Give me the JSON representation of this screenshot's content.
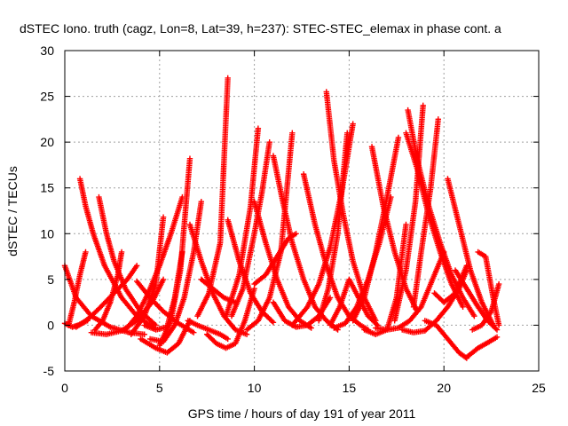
{
  "chart_data": {
    "type": "scatter",
    "title": "dSTEC Iono. truth (cagz, Lon=8, Lat=39, h=237): STEC-STEC_elemax in phase cont. a",
    "xlabel": "GPS time / hours of day 191 of year 2011",
    "ylabel": "dSTEC  / TECUs",
    "xlim": [
      0,
      25
    ],
    "ylim": [
      -5,
      30
    ],
    "x_ticks": [
      "0",
      "5",
      "10",
      "15",
      "20",
      "25"
    ],
    "y_ticks": [
      "-5",
      "0",
      "5",
      "10",
      "15",
      "20",
      "25",
      "30"
    ],
    "grid": true,
    "marker": "+",
    "colors": {
      "series": "#ff0000",
      "grid": "#a0a0a0",
      "axis": "#000000"
    },
    "series": [
      {
        "x": [
          0.0,
          0.6,
          1.4,
          2.4,
          3.4,
          4.2
        ],
        "y": [
          6.5,
          3.0,
          1.0,
          -0.2,
          -0.8,
          -1.0
        ]
      },
      {
        "x": [
          0.0,
          0.4,
          0.7,
          1.2
        ],
        "y": [
          0.2,
          -0.2,
          0.0,
          0.5
        ]
      },
      {
        "x": [
          0.6,
          0.9,
          1.3,
          1.8,
          2.6,
          3.3,
          3.8
        ],
        "y": [
          -0.2,
          0.2,
          0.8,
          1.8,
          3.5,
          5.0,
          6.5
        ]
      },
      {
        "x": [
          0.8,
          1.1,
          1.5,
          2.1,
          3.0,
          3.8,
          4.7
        ],
        "y": [
          16.0,
          13.0,
          10.0,
          6.5,
          3.0,
          1.0,
          -0.3
        ]
      },
      {
        "x": [
          0.2,
          0.5,
          0.8,
          1.1
        ],
        "y": [
          0.0,
          2.5,
          5.5,
          8.0
        ]
      },
      {
        "x": [
          1.8,
          2.2,
          2.6,
          3.2,
          4.0,
          4.8
        ],
        "y": [
          14.0,
          10.0,
          7.0,
          4.0,
          1.5,
          0.0
        ]
      },
      {
        "x": [
          1.6,
          2.0,
          2.4,
          2.8,
          3.0
        ],
        "y": [
          -0.5,
          0.5,
          2.5,
          5.5,
          8.0
        ]
      },
      {
        "x": [
          1.4,
          2.2,
          3.0,
          3.8,
          4.6,
          5.2
        ],
        "y": [
          -0.8,
          -1.0,
          -0.6,
          0.5,
          2.5,
          5.0
        ]
      },
      {
        "x": [
          3.2,
          3.8,
          4.4,
          5.0,
          5.6,
          6.2
        ],
        "y": [
          -0.5,
          1.0,
          3.5,
          6.5,
          10.0,
          14.0
        ]
      },
      {
        "x": [
          3.5,
          4.2,
          4.8,
          5.2
        ],
        "y": [
          -1.0,
          1.0,
          4.5,
          11.8
        ]
      },
      {
        "x": [
          3.8,
          4.5,
          5.2,
          6.0,
          6.8
        ],
        "y": [
          4.8,
          3.0,
          1.5,
          0.2,
          -0.8
        ]
      },
      {
        "x": [
          4.0,
          4.8,
          5.4,
          6.0,
          6.6
        ],
        "y": [
          -1.5,
          -2.5,
          -3.0,
          -2.0,
          0.5
        ]
      },
      {
        "x": [
          4.2,
          4.8,
          5.4,
          5.8,
          6.2
        ],
        "y": [
          0.0,
          -0.5,
          -0.2,
          3.0,
          8.0
        ]
      },
      {
        "x": [
          4.5,
          5.2,
          5.8,
          6.3,
          6.8,
          7.2
        ],
        "y": [
          -1.5,
          -1.8,
          0.0,
          3.0,
          8.0,
          13.5
        ]
      },
      {
        "x": [
          5.0,
          5.6,
          6.1,
          6.6
        ],
        "y": [
          -2.2,
          0.5,
          6.0,
          18.2
        ]
      },
      {
        "x": [
          6.6,
          7.2,
          7.8,
          8.4,
          9.0,
          9.6
        ],
        "y": [
          11.0,
          7.0,
          3.5,
          1.0,
          -0.5,
          -1.0
        ]
      },
      {
        "x": [
          6.5,
          7.0,
          7.6,
          8.2,
          8.6
        ],
        "y": [
          0.5,
          0.0,
          -0.5,
          -1.0,
          -1.5
        ]
      },
      {
        "x": [
          7.0,
          7.6,
          8.2,
          8.6
        ],
        "y": [
          1.0,
          3.5,
          9.0,
          27.0
        ]
      },
      {
        "x": [
          7.2,
          7.8,
          8.4,
          9.0
        ],
        "y": [
          5.0,
          4.0,
          3.0,
          2.5
        ]
      },
      {
        "x": [
          7.5,
          8.0,
          8.5,
          9.0,
          9.5,
          10.0
        ],
        "y": [
          -1.0,
          -2.0,
          -2.5,
          -2.0,
          0.5,
          4.0
        ]
      },
      {
        "x": [
          8.6,
          9.2,
          9.8,
          10.4,
          11.0
        ],
        "y": [
          11.5,
          7.0,
          3.5,
          1.5,
          0.3
        ]
      },
      {
        "x": [
          8.8,
          9.4,
          10.0,
          10.4,
          10.8
        ],
        "y": [
          1.0,
          4.0,
          10.0,
          14.5,
          20.0
        ]
      },
      {
        "x": [
          8.5,
          9.2,
          9.8,
          10.2
        ],
        "y": [
          1.0,
          5.5,
          13.0,
          21.5
        ]
      },
      {
        "x": [
          10.0,
          10.6,
          11.2,
          11.8,
          12.4,
          13.0
        ],
        "y": [
          13.5,
          9.0,
          5.0,
          2.0,
          0.5,
          -0.3
        ]
      },
      {
        "x": [
          9.6,
          10.2,
          10.8,
          11.4,
          12.0
        ],
        "y": [
          -0.5,
          0.5,
          3.0,
          8.0,
          21.0
        ]
      },
      {
        "x": [
          10.0,
          10.6,
          11.2,
          11.8,
          12.2
        ],
        "y": [
          4.5,
          5.5,
          7.5,
          9.5,
          10.0
        ]
      },
      {
        "x": [
          11.0,
          11.5,
          12.0,
          12.6,
          13.2,
          13.8,
          14.4
        ],
        "y": [
          18.5,
          13.5,
          9.0,
          5.0,
          2.0,
          0.5,
          -0.5
        ]
      },
      {
        "x": [
          11.0,
          11.6,
          12.2,
          12.8,
          13.4,
          14.0
        ],
        "y": [
          2.5,
          0.5,
          -0.2,
          0.0,
          1.0,
          3.0
        ]
      },
      {
        "x": [
          12.6,
          13.2,
          13.8,
          14.4,
          15.0,
          15.6,
          16.0
        ],
        "y": [
          16.5,
          11.0,
          6.5,
          3.0,
          1.0,
          0.0,
          -0.5
        ]
      },
      {
        "x": [
          12.0,
          12.8,
          13.4,
          14.0,
          14.6,
          15.2
        ],
        "y": [
          0.0,
          2.0,
          4.5,
          8.5,
          14.5,
          22.0
        ]
      },
      {
        "x": [
          13.8,
          14.2,
          14.7,
          15.2,
          15.8,
          16.4
        ],
        "y": [
          25.5,
          18.0,
          12.0,
          7.0,
          3.0,
          0.5
        ]
      },
      {
        "x": [
          13.4,
          13.9,
          14.4,
          14.9
        ],
        "y": [
          0.5,
          4.0,
          10.0,
          21.0
        ]
      },
      {
        "x": [
          14.0,
          14.5,
          15.0,
          15.5,
          16.0,
          16.5
        ],
        "y": [
          0.0,
          2.0,
          5.0,
          3.0,
          1.0,
          0.0
        ]
      },
      {
        "x": [
          14.2,
          14.8,
          15.4,
          16.0,
          16.6,
          17.2
        ],
        "y": [
          -0.3,
          0.2,
          2.0,
          5.0,
          9.0,
          14.0
        ]
      },
      {
        "x": [
          16.2,
          16.8,
          17.4,
          18.0,
          18.6
        ],
        "y": [
          19.5,
          13.0,
          8.0,
          4.0,
          1.5
        ]
      },
      {
        "x": [
          15.8,
          16.4,
          17.0,
          17.5,
          18.0
        ],
        "y": [
          -0.5,
          -1.0,
          -0.5,
          3.0,
          11.0
        ]
      },
      {
        "x": [
          15.2,
          15.8,
          16.4,
          17.0,
          17.6
        ],
        "y": [
          0.5,
          3.0,
          8.0,
          14.0,
          20.5
        ]
      },
      {
        "x": [
          16.4,
          17.0,
          17.6,
          18.2,
          18.8,
          19.4,
          20.0
        ],
        "y": [
          -0.3,
          -0.5,
          -0.3,
          0.5,
          2.0,
          5.0,
          8.0
        ]
      },
      {
        "x": [
          18.1,
          18.6,
          19.2,
          19.8,
          20.4,
          21.0,
          21.6
        ],
        "y": [
          23.5,
          18.0,
          13.0,
          9.0,
          5.5,
          3.0,
          1.0
        ]
      },
      {
        "x": [
          17.4,
          18.0,
          18.5,
          18.9
        ],
        "y": [
          0.5,
          6.0,
          13.5,
          24.0
        ]
      },
      {
        "x": [
          18.0,
          18.6,
          19.2,
          19.8,
          20.4,
          21.0
        ],
        "y": [
          21.0,
          17.0,
          12.0,
          8.0,
          4.5,
          2.0
        ]
      },
      {
        "x": [
          18.4,
          18.8,
          19.3,
          19.7
        ],
        "y": [
          2.0,
          8.0,
          15.0,
          22.5
        ]
      },
      {
        "x": [
          17.8,
          18.4,
          19.0,
          19.6,
          20.2,
          20.8,
          21.2
        ],
        "y": [
          -0.5,
          -0.8,
          -0.6,
          0.5,
          2.0,
          4.0,
          6.0
        ]
      },
      {
        "x": [
          19.0,
          19.6,
          20.2,
          20.8,
          21.2
        ],
        "y": [
          0.5,
          0.0,
          -1.5,
          -3.0,
          -3.6
        ]
      },
      {
        "x": [
          19.5,
          20.0,
          20.6,
          21.2
        ],
        "y": [
          3.5,
          2.5,
          3.5,
          6.5
        ]
      },
      {
        "x": [
          20.2,
          20.8,
          21.4,
          22.0,
          22.6
        ],
        "y": [
          16.0,
          11.0,
          6.0,
          2.5,
          0.0
        ]
      },
      {
        "x": [
          20.6,
          21.2,
          21.8,
          22.3,
          22.8
        ],
        "y": [
          6.0,
          4.0,
          2.0,
          0.5,
          -0.5
        ]
      },
      {
        "x": [
          21.2,
          21.8,
          22.4,
          22.8
        ],
        "y": [
          -3.5,
          -2.5,
          -1.8,
          -1.3
        ]
      },
      {
        "x": [
          21.8,
          22.2,
          22.6,
          22.9
        ],
        "y": [
          8.0,
          7.5,
          3.0,
          0.0
        ]
      },
      {
        "x": [
          21.5,
          22.0,
          22.5,
          22.9
        ],
        "y": [
          -0.5,
          0.0,
          1.5,
          4.5
        ]
      }
    ]
  }
}
